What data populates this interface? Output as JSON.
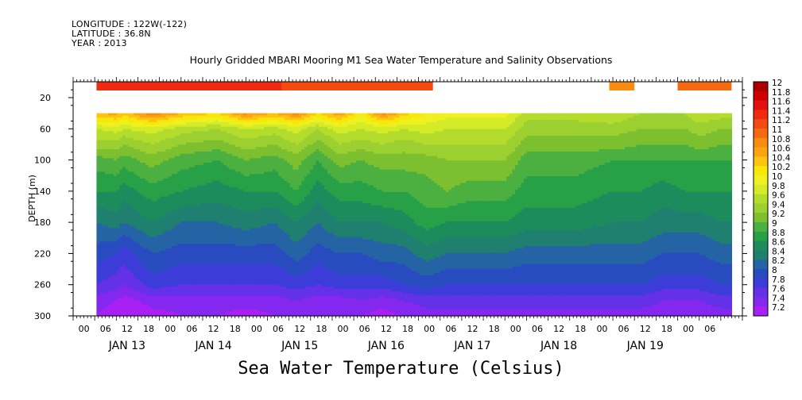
{
  "header": {
    "longitude": "LONGITUDE : 122W(-122)",
    "latitude": "LATITUDE : 36.8N",
    "year": "YEAR : 2013"
  },
  "chart_data": {
    "type": "heatmap",
    "title": "Hourly Gridded MBARI Mooring M1 Sea Water Temperature and Salinity Observations",
    "subtitle": "Sea Water Temperature (Celsius)",
    "ylabel": "DEPTH (m)",
    "xlabel": "",
    "y_axis": {
      "range": [
        300,
        0
      ],
      "ticks": [
        20,
        60,
        100,
        140,
        180,
        220,
        260,
        300
      ],
      "reversed": true
    },
    "x_axis": {
      "hour_ticks": [
        "00",
        "06",
        "12",
        "18",
        "00",
        "06",
        "12",
        "18",
        "00",
        "06",
        "12",
        "18",
        "00",
        "06",
        "12",
        "18",
        "00",
        "06",
        "12",
        "18",
        "00",
        "06",
        "12",
        "18",
        "00",
        "06",
        "12",
        "18",
        "00",
        "06"
      ],
      "day_labels": [
        {
          "label": "JAN 13",
          "hour": 36
        },
        {
          "label": "JAN 14",
          "hour": 60
        },
        {
          "label": "JAN 15",
          "hour": 84
        },
        {
          "label": "JAN 16",
          "hour": 108
        },
        {
          "label": "JAN 17",
          "hour": 132
        },
        {
          "label": "JAN 18",
          "hour": 156
        },
        {
          "label": "JAN 19",
          "hour": 180
        }
      ],
      "hour_range": [
        0,
        174
      ]
    },
    "colorbar": {
      "levels": [
        "12",
        "11.8",
        "11.6",
        "11.4",
        "11.2",
        "11",
        "10.8",
        "10.6",
        "10.4",
        "10.2",
        "10",
        "9.8",
        "9.6",
        "9.4",
        "9.2",
        "9",
        "8.8",
        "8.6",
        "8.4",
        "8.2",
        "8",
        "7.8",
        "7.6",
        "7.4",
        "7.2"
      ],
      "colors": [
        "#a80000",
        "#d00000",
        "#e41010",
        "#f02a10",
        "#f44a10",
        "#f46a10",
        "#f88c10",
        "#fca410",
        "#fcc410",
        "#f8e808",
        "#f0f020",
        "#d4ec28",
        "#b4dc2c",
        "#9cd030",
        "#7cc030",
        "#4cb040",
        "#28a048",
        "#1c8c5c",
        "#208070",
        "#2464a4",
        "#284cc0",
        "#3c3cd8",
        "#6430e8",
        "#8428f0",
        "#a820f4"
      ],
      "placement": "right"
    },
    "surface_layer": {
      "depth_m": 10,
      "segments": [
        {
          "from_hour": 6.5,
          "to_hour": 58,
          "value": 11.5
        },
        {
          "from_hour": 58,
          "to_hour": 100,
          "value": 11.3
        },
        {
          "from_hour": 149,
          "to_hour": 156,
          "value": 10.8
        },
        {
          "from_hour": 168,
          "to_hour": 183,
          "value": 11.1
        }
      ]
    },
    "profile_columns": [
      {
        "hour": 6.5,
        "temps": [
          10.6,
          9.8,
          9.5,
          9.1,
          8.8,
          8.4,
          8.1,
          7.8,
          7.5,
          7.4
        ]
      },
      {
        "hour": 12,
        "temps": [
          10.7,
          9.9,
          9.5,
          9.2,
          8.8,
          8.5,
          8.0,
          7.7,
          7.4,
          7.3
        ]
      },
      {
        "hour": 14,
        "temps": [
          10.5,
          9.8,
          9.4,
          9.1,
          8.7,
          8.4,
          7.9,
          7.6,
          7.3,
          7.2
        ]
      },
      {
        "hour": 22,
        "temps": [
          11.0,
          9.9,
          9.6,
          9.3,
          8.9,
          8.6,
          8.2,
          7.9,
          7.5,
          7.3
        ]
      },
      {
        "hour": 30,
        "temps": [
          10.6,
          9.7,
          9.4,
          9.1,
          8.8,
          8.4,
          8.1,
          7.8,
          7.5,
          7.4
        ]
      },
      {
        "hour": 40,
        "temps": [
          10.4,
          9.6,
          9.3,
          9.0,
          8.7,
          8.4,
          8.1,
          7.8,
          7.5,
          7.4
        ]
      },
      {
        "hour": 48,
        "temps": [
          10.9,
          9.8,
          9.5,
          9.2,
          8.8,
          8.5,
          8.1,
          7.8,
          7.5,
          7.3
        ]
      },
      {
        "hour": 56,
        "temps": [
          10.6,
          9.7,
          9.4,
          9.1,
          8.8,
          8.4,
          8.1,
          7.8,
          7.5,
          7.4
        ]
      },
      {
        "hour": 62,
        "temps": [
          10.9,
          9.9,
          9.6,
          9.3,
          9.0,
          8.6,
          8.3,
          7.9,
          7.6,
          7.4
        ]
      },
      {
        "hour": 68,
        "temps": [
          10.4,
          9.6,
          9.3,
          9.0,
          8.7,
          8.4,
          8.1,
          7.8,
          7.5,
          7.4
        ]
      },
      {
        "hour": 74,
        "temps": [
          10.8,
          9.9,
          9.6,
          9.3,
          8.9,
          8.6,
          8.2,
          7.9,
          7.5,
          7.4
        ]
      },
      {
        "hour": 80,
        "temps": [
          10.2,
          9.8,
          9.5,
          9.2,
          8.9,
          8.6,
          8.2,
          7.9,
          7.6,
          7.4
        ]
      },
      {
        "hour": 86,
        "temps": [
          10.9,
          9.9,
          9.6,
          9.3,
          9.0,
          8.6,
          8.3,
          7.9,
          7.5,
          7.3
        ]
      },
      {
        "hour": 92,
        "temps": [
          10.5,
          9.8,
          9.5,
          9.3,
          9.0,
          8.7,
          8.3,
          8.0,
          7.6,
          7.4
        ]
      },
      {
        "hour": 98,
        "temps": [
          10.2,
          9.9,
          9.6,
          9.3,
          9.1,
          8.9,
          8.5,
          8.1,
          7.7,
          7.5
        ]
      },
      {
        "hour": 104,
        "temps": [
          10.1,
          9.8,
          9.6,
          9.4,
          9.2,
          8.8,
          8.4,
          8.0,
          7.7,
          7.5
        ]
      },
      {
        "hour": 110,
        "temps": [
          10.1,
          9.8,
          9.6,
          9.4,
          9.1,
          8.8,
          8.4,
          8.0,
          7.7,
          7.5
        ]
      },
      {
        "hour": 120,
        "temps": [
          10.1,
          9.8,
          9.6,
          9.4,
          9.1,
          8.8,
          8.4,
          8.0,
          7.7,
          7.5
        ]
      },
      {
        "hour": 126,
        "temps": [
          9.7,
          9.5,
          9.3,
          9.1,
          8.9,
          8.7,
          8.3,
          8.0,
          7.7,
          7.5
        ]
      },
      {
        "hour": 140,
        "temps": [
          9.7,
          9.5,
          9.3,
          9.1,
          8.9,
          8.7,
          8.3,
          8.0,
          7.7,
          7.5
        ]
      },
      {
        "hour": 150,
        "temps": [
          9.8,
          9.5,
          9.3,
          9.0,
          8.8,
          8.6,
          8.3,
          8.0,
          7.7,
          7.5
        ]
      },
      {
        "hour": 158,
        "temps": [
          9.6,
          9.4,
          9.2,
          9.0,
          8.8,
          8.6,
          8.3,
          8.0,
          7.7,
          7.5
        ]
      },
      {
        "hour": 164,
        "temps": [
          9.6,
          9.4,
          9.2,
          9.0,
          8.7,
          8.5,
          8.2,
          7.9,
          7.6,
          7.5
        ]
      },
      {
        "hour": 170,
        "temps": [
          9.6,
          9.4,
          9.2,
          9.0,
          8.8,
          8.5,
          8.2,
          7.9,
          7.6,
          7.4
        ]
      },
      {
        "hour": 174,
        "temps": [
          9.8,
          9.5,
          9.3,
          9.0,
          8.8,
          8.5,
          8.2,
          7.9,
          7.6,
          7.5
        ]
      },
      {
        "hour": 180,
        "temps": [
          9.7,
          9.4,
          9.2,
          9.0,
          8.8,
          8.6,
          8.3,
          8.0,
          7.7,
          7.5
        ]
      },
      {
        "hour": 183,
        "temps": [
          9.7,
          9.4,
          9.2,
          9.0,
          8.8,
          8.6,
          8.3,
          8.0,
          7.7,
          7.5
        ]
      }
    ],
    "profile_depths": [
      40,
      60,
      80,
      100,
      140,
      180,
      220,
      260,
      280,
      300
    ]
  }
}
